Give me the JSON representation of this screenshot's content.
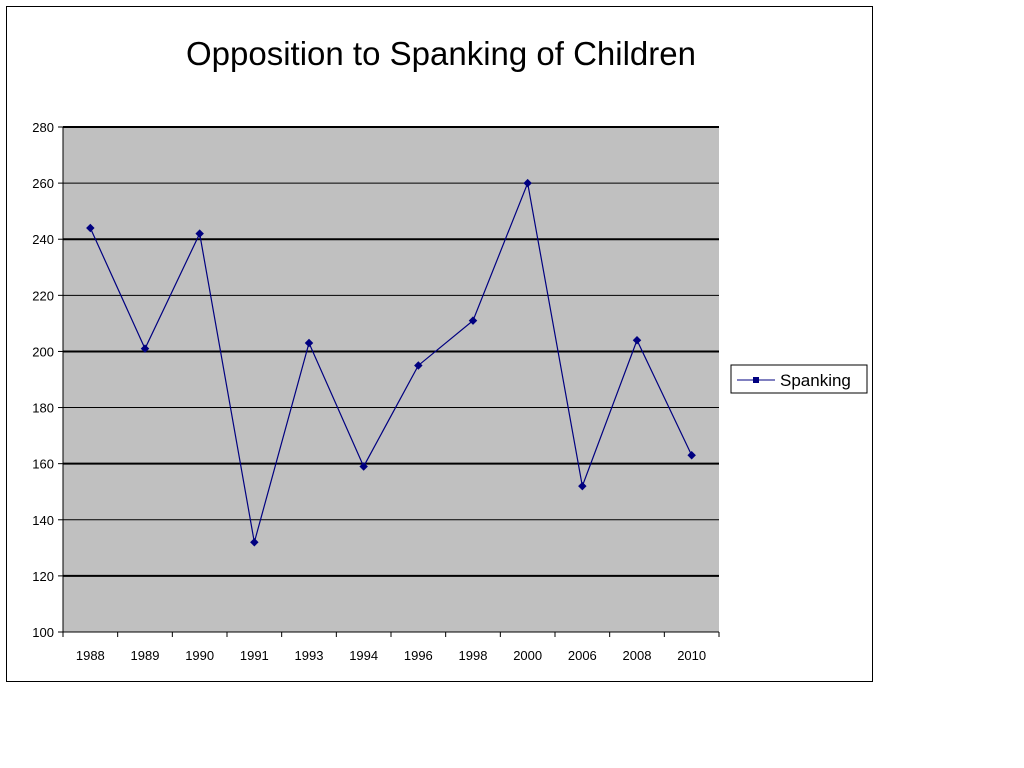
{
  "chart_data": {
    "type": "line",
    "title": "Opposition to Spanking of Children",
    "xlabel": "",
    "ylabel": "",
    "categories": [
      "1988",
      "1989",
      "1990",
      "1991",
      "1993",
      "1994",
      "1996",
      "1998",
      "2000",
      "2006",
      "2008",
      "2010"
    ],
    "series": [
      {
        "name": "Spanking",
        "values": [
          244,
          201,
          242,
          132,
          203,
          159,
          195,
          211,
          260,
          152,
          204,
          163
        ]
      }
    ],
    "ylim": [
      100,
      280
    ],
    "yticks": [
      "100",
      "120",
      "140",
      "160",
      "180",
      "200",
      "220",
      "240",
      "260",
      "280"
    ],
    "grid": true,
    "legend": "right",
    "colors": {
      "plot_background": "#c0c0c0",
      "series_line": "#000080",
      "gridline": "#000000"
    }
  }
}
